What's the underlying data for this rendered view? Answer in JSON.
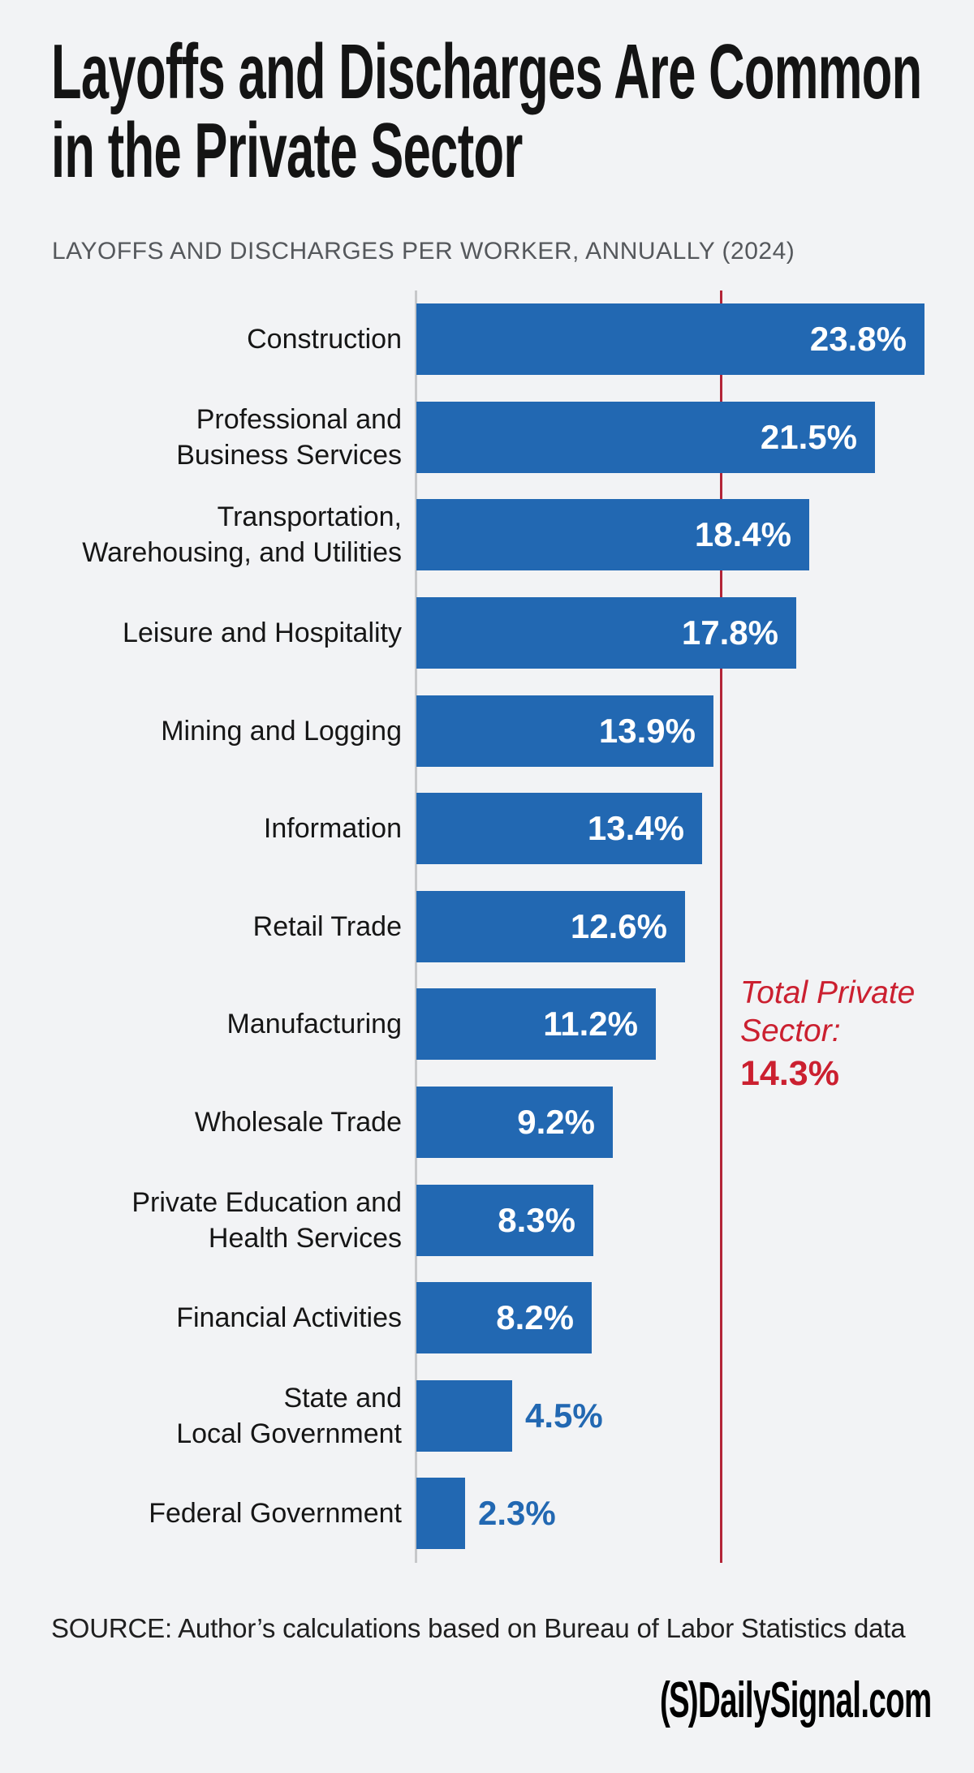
{
  "header": {
    "title_lines": [
      "Layoffs and Discharges Are Common",
      "in the Private Sector"
    ],
    "subtitle": "LAYOFFS AND DISCHARGES PER WORKER, ANNUALLY (2024)"
  },
  "chart_data": {
    "type": "bar",
    "orientation": "horizontal",
    "title": "Layoffs and Discharges Are Common in the Private Sector",
    "subtitle": "LAYOFFS AND DISCHARGES PER WORKER, ANNUALLY (2024)",
    "value_unit": "percent",
    "xlim": [
      0,
      26
    ],
    "grid": false,
    "bar_color": "#2268b2",
    "axis_line_color": "#c7c8ca",
    "categories": [
      "Construction",
      "Professional and Business Services",
      "Transportation, Warehousing, and Utilities",
      "Leisure and Hospitality",
      "Mining and Logging",
      "Information",
      "Retail Trade",
      "Manufacturing",
      "Wholesale Trade",
      "Private Education and Health Services",
      "Financial Activities",
      "State and Local Government",
      "Federal Government"
    ],
    "values": [
      23.8,
      21.5,
      18.4,
      17.8,
      13.9,
      13.4,
      12.6,
      11.2,
      9.2,
      8.3,
      8.2,
      4.5,
      2.3
    ],
    "bars": [
      {
        "label": "Construction",
        "label_lines": [
          "Construction"
        ],
        "value": 23.8,
        "value_label": "23.8%",
        "value_placement": "inside"
      },
      {
        "label": "Professional and Business Services",
        "label_lines": [
          "Professional and",
          "Business Services"
        ],
        "value": 21.5,
        "value_label": "21.5%",
        "value_placement": "inside"
      },
      {
        "label": "Transportation, Warehousing, and Utilities",
        "label_lines": [
          "Transportation,",
          "Warehousing, and Utilities"
        ],
        "value": 18.4,
        "value_label": "18.4%",
        "value_placement": "inside"
      },
      {
        "label": "Leisure and Hospitality",
        "label_lines": [
          "Leisure and Hospitality"
        ],
        "value": 17.8,
        "value_label": "17.8%",
        "value_placement": "inside"
      },
      {
        "label": "Mining and Logging",
        "label_lines": [
          "Mining and Logging"
        ],
        "value": 13.9,
        "value_label": "13.9%",
        "value_placement": "inside"
      },
      {
        "label": "Information",
        "label_lines": [
          "Information"
        ],
        "value": 13.4,
        "value_label": "13.4%",
        "value_placement": "inside"
      },
      {
        "label": "Retail Trade",
        "label_lines": [
          "Retail Trade"
        ],
        "value": 12.6,
        "value_label": "12.6%",
        "value_placement": "inside"
      },
      {
        "label": "Manufacturing",
        "label_lines": [
          "Manufacturing"
        ],
        "value": 11.2,
        "value_label": "11.2%",
        "value_placement": "inside"
      },
      {
        "label": "Wholesale Trade",
        "label_lines": [
          "Wholesale Trade"
        ],
        "value": 9.2,
        "value_label": "9.2%",
        "value_placement": "inside"
      },
      {
        "label": "Private Education and Health Services",
        "label_lines": [
          "Private Education and",
          "Health Services"
        ],
        "value": 8.3,
        "value_label": "8.3%",
        "value_placement": "inside"
      },
      {
        "label": "Financial Activities",
        "label_lines": [
          "Financial Activities"
        ],
        "value": 8.2,
        "value_label": "8.2%",
        "value_placement": "inside"
      },
      {
        "label": "State and Local Government",
        "label_lines": [
          "State and",
          "Local Government"
        ],
        "value": 4.5,
        "value_label": "4.5%",
        "value_placement": "outside"
      },
      {
        "label": "Federal Government",
        "label_lines": [
          "Federal Government"
        ],
        "value": 2.3,
        "value_label": "2.3%",
        "value_placement": "outside"
      }
    ],
    "reference_line": {
      "value": 14.3,
      "color": "#b32437",
      "annotation_lines": [
        "Total Private",
        "Sector:"
      ],
      "annotation_value": "14.3%",
      "annotation_color": "#cb2030"
    }
  },
  "footer": {
    "source": "SOURCE: Author’s calculations based on Bureau of Labor Statistics data",
    "logo_mark": "(S)",
    "logo_text": "DailySignal.com"
  }
}
